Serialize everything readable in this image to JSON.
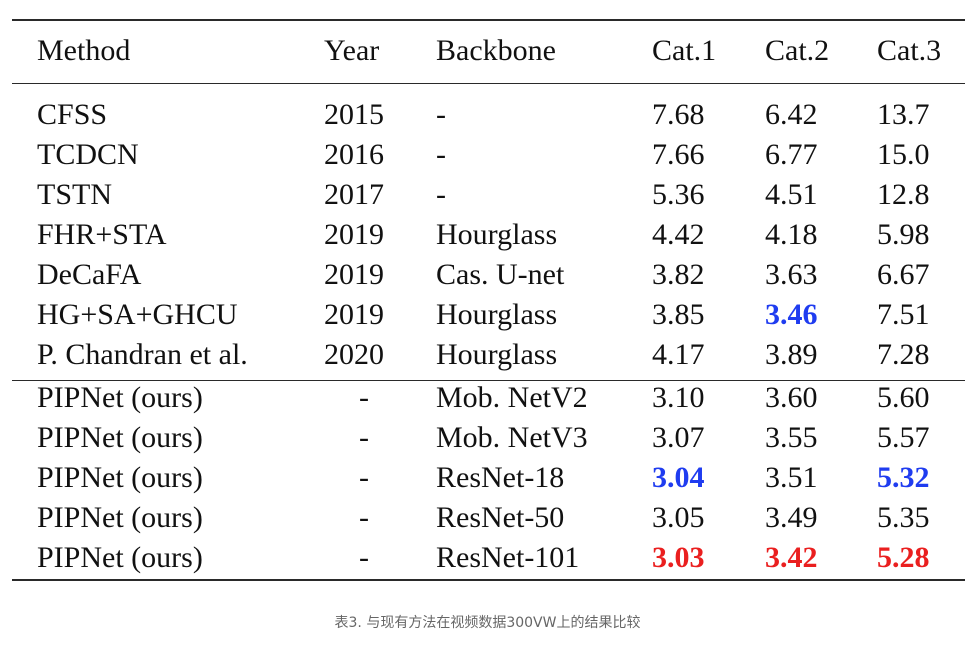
{
  "table": {
    "headers": {
      "method": "Method",
      "year": "Year",
      "backbone": "Backbone",
      "cat1": "Cat.1",
      "cat2": "Cat.2",
      "cat3": "Cat.3"
    },
    "rows": [
      {
        "method": "CFSS",
        "year": "2015",
        "backbone": "-",
        "cat1": "7.68",
        "cat2": "6.42",
        "cat3": "13.7"
      },
      {
        "method": "TCDCN",
        "year": "2016",
        "backbone": "-",
        "cat1": "7.66",
        "cat2": "6.77",
        "cat3": "15.0"
      },
      {
        "method": "TSTN",
        "year": "2017",
        "backbone": "-",
        "cat1": "5.36",
        "cat2": "4.51",
        "cat3": "12.8"
      },
      {
        "method": "FHR+STA",
        "year": "2019",
        "backbone": "Hourglass",
        "cat1": "4.42",
        "cat2": "4.18",
        "cat3": "5.98"
      },
      {
        "method": "DeCaFA",
        "year": "2019",
        "backbone": "Cas. U-net",
        "cat1": "3.82",
        "cat2": "3.63",
        "cat3": "6.67"
      },
      {
        "method": "HG+SA+GHCU",
        "year": "2019",
        "backbone": "Hourglass",
        "cat1": "3.85",
        "cat2": "3.46",
        "cat3": "7.51"
      },
      {
        "method": "P. Chandran et al.",
        "year": "2020",
        "backbone": "Hourglass",
        "cat1": "4.17",
        "cat2": "3.89",
        "cat3": "7.28"
      },
      {
        "method": "PIPNet (ours)",
        "year": "-",
        "backbone": "Mob. NetV2",
        "cat1": "3.10",
        "cat2": "3.60",
        "cat3": "5.60"
      },
      {
        "method": "PIPNet (ours)",
        "year": "-",
        "backbone": "Mob. NetV3",
        "cat1": "3.07",
        "cat2": "3.55",
        "cat3": "5.57"
      },
      {
        "method": "PIPNet (ours)",
        "year": "-",
        "backbone": "ResNet-18",
        "cat1": "3.04",
        "cat2": "3.51",
        "cat3": "5.32"
      },
      {
        "method": "PIPNet (ours)",
        "year": "-",
        "backbone": "ResNet-50",
        "cat1": "3.05",
        "cat2": "3.49",
        "cat3": "5.35"
      },
      {
        "method": "PIPNet (ours)",
        "year": "-",
        "backbone": "ResNet-101",
        "cat1": "3.03",
        "cat2": "3.42",
        "cat3": "5.28"
      }
    ]
  },
  "highlights": {
    "best_color": "#ea1f1f",
    "second_best_color": "#1f3cf0"
  },
  "caption": "表3. 与现有方法在视频数据300VW上的结果比较"
}
